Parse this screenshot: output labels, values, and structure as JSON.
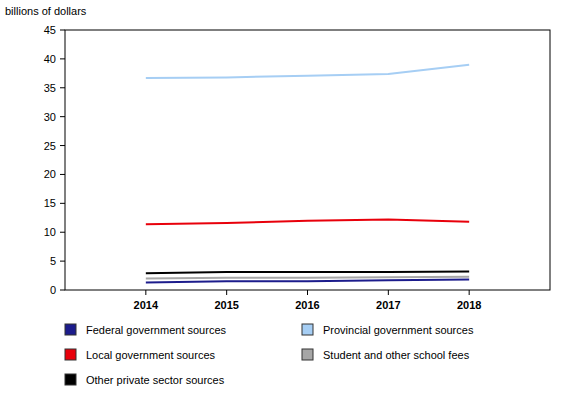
{
  "chart_data": {
    "type": "line",
    "y_label": "billions of dollars",
    "categories": [
      "2014",
      "2015",
      "2016",
      "2017",
      "2018"
    ],
    "series": [
      {
        "name": "Federal government sources",
        "color": "#1c1c8c",
        "values": [
          1.3,
          1.5,
          1.5,
          1.7,
          1.8
        ]
      },
      {
        "name": "Provincial government sources",
        "color": "#a6cef4",
        "values": [
          36.7,
          36.8,
          37.1,
          37.4,
          39.0
        ]
      },
      {
        "name": "Local government sources",
        "color": "#e8000b",
        "values": [
          11.4,
          11.6,
          12.0,
          12.2,
          11.8
        ]
      },
      {
        "name": "Student and other school fees",
        "color": "#a6a6a6",
        "values": [
          2.0,
          2.1,
          2.1,
          2.2,
          2.3
        ]
      },
      {
        "name": "Other private sector sources",
        "color": "#000000",
        "values": [
          2.9,
          3.1,
          3.1,
          3.1,
          3.2
        ]
      }
    ],
    "ylim": [
      0,
      45
    ],
    "yticks": [
      0,
      5,
      10,
      15,
      20,
      25,
      30,
      35,
      40,
      45
    ],
    "grid": false,
    "legend": "bottom"
  }
}
